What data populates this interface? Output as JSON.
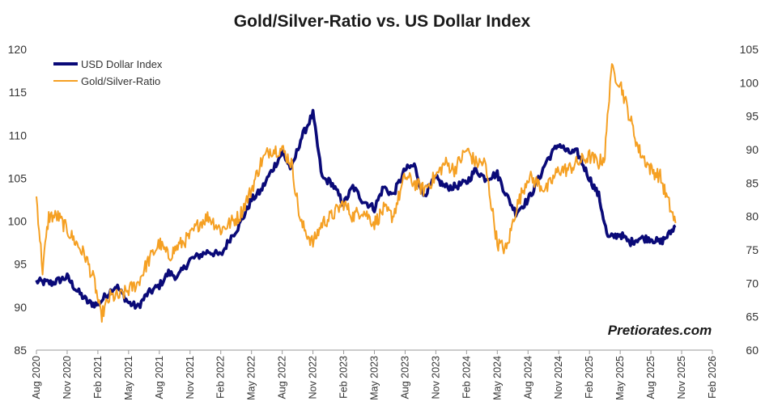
{
  "chart_data": {
    "type": "line",
    "title": "Gold/Silver-Ratio vs. US Dollar Index",
    "watermark": "Pretiorates.com",
    "left_axis": {
      "ylim": [
        85,
        120
      ],
      "ticks": [
        "85",
        "90",
        "95",
        "100",
        "105",
        "110",
        "115",
        "120"
      ],
      "tick_values": [
        85,
        90,
        95,
        100,
        105,
        110,
        115,
        120
      ]
    },
    "right_axis": {
      "ylim": [
        60,
        105
      ],
      "ticks": [
        "60",
        "65",
        "70",
        "75",
        "80",
        "85",
        "90",
        "95",
        "100",
        "105"
      ],
      "tick_values": [
        60,
        65,
        70,
        75,
        80,
        85,
        90,
        95,
        100,
        105
      ]
    },
    "x_ticks": [
      "Aug 2020",
      "Nov 2020",
      "Feb 2021",
      "May 2021",
      "Aug 2021",
      "Nov 2021",
      "Feb 2022",
      "May 2022",
      "Aug 2022",
      "Nov 2022",
      "Feb 2023",
      "May 2023",
      "Aug 2023",
      "Nov 2023",
      "Feb 2024",
      "May 2024",
      "Aug 2024",
      "Nov 2024",
      "Feb 2025",
      "May 2025",
      "Aug 2025",
      "Nov 2025",
      "Feb 2026"
    ],
    "x_range": [
      0,
      22
    ],
    "legend": {
      "placement": "top-left"
    },
    "series": [
      {
        "name": "USD Dollar Index",
        "axis": "left",
        "color": "#0a0a78",
        "x": [
          0,
          0.5,
          1,
          1.3,
          1.7,
          2.0,
          2.3,
          2.6,
          3.0,
          3.3,
          3.6,
          4.0,
          4.3,
          4.6,
          5.0,
          5.3,
          5.6,
          6.0,
          6.3,
          6.6,
          7.0,
          7.3,
          7.6,
          8.0,
          8.3,
          8.6,
          9.0,
          9.3,
          9.6,
          10.0,
          10.3,
          10.6,
          11.0,
          11.3,
          11.6,
          12.0,
          12.3,
          12.6,
          13.0,
          13.3,
          13.6,
          14.0,
          14.3,
          14.6,
          15.0,
          15.3,
          15.6,
          16.0,
          16.3,
          16.6,
          17.0,
          17.3,
          17.6,
          18.0,
          18.3,
          18.6,
          19.0,
          19.3,
          19.6,
          20.0,
          20.3,
          20.6,
          20.8
        ],
        "values": [
          93,
          92.8,
          93.5,
          92,
          90.5,
          90.3,
          91.5,
          92.5,
          90.5,
          90,
          91.5,
          92.5,
          94,
          93.5,
          95.5,
          96,
          96.5,
          96,
          98,
          99.5,
          102.5,
          103.5,
          105.5,
          108,
          106,
          109.5,
          112.5,
          105,
          104.5,
          102,
          104,
          102.5,
          101.5,
          104,
          103,
          106,
          106.5,
          103,
          105,
          104,
          104,
          104.5,
          106,
          105,
          105.5,
          103,
          101,
          102.5,
          104.5,
          107,
          109,
          108,
          108,
          105,
          103,
          98,
          98.5,
          97.5,
          98,
          98,
          97.5,
          98.5,
          99.5
        ]
      },
      {
        "name": "Gold/Silver-Ratio",
        "axis": "right",
        "color": "#f5a023",
        "x": [
          0,
          0.2,
          0.4,
          0.7,
          1.0,
          1.3,
          1.6,
          1.9,
          2.1,
          2.4,
          2.7,
          3.0,
          3.3,
          3.6,
          4.0,
          4.3,
          4.6,
          5.0,
          5.3,
          5.6,
          6.0,
          6.3,
          6.6,
          7.0,
          7.3,
          7.6,
          8.0,
          8.3,
          8.6,
          9.0,
          9.3,
          9.6,
          10.0,
          10.3,
          10.6,
          11.0,
          11.3,
          11.6,
          12.0,
          12.3,
          12.6,
          13.0,
          13.3,
          13.6,
          14.0,
          14.3,
          14.6,
          14.8,
          15.0,
          15.3,
          15.6,
          16.0,
          16.3,
          16.6,
          17.0,
          17.3,
          17.6,
          18.0,
          18.3,
          18.5,
          18.7,
          19.0,
          19.3,
          19.6,
          20.0,
          20.3,
          20.5,
          20.8
        ],
        "values": [
          83,
          72,
          80,
          80,
          78,
          76,
          74,
          70,
          65,
          68,
          68,
          69,
          70,
          73,
          76,
          74,
          75.5,
          77,
          79,
          80,
          78,
          79,
          80,
          84,
          88,
          90,
          90,
          88,
          79,
          76,
          79,
          80,
          82,
          80,
          81,
          79,
          81,
          80,
          86,
          85,
          84,
          86,
          88,
          87,
          90,
          88,
          88,
          82,
          76,
          75,
          81,
          86,
          85,
          84,
          87,
          87,
          88,
          89,
          88,
          89,
          102,
          100,
          95,
          90,
          87,
          86,
          83,
          79
        ]
      }
    ]
  }
}
